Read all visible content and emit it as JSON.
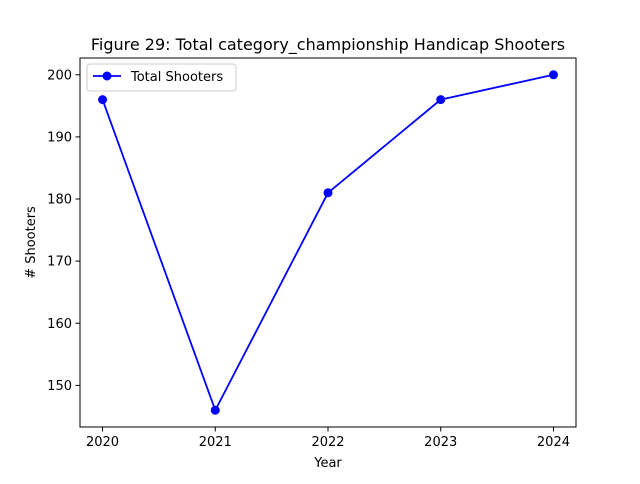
{
  "chart_data": {
    "type": "line",
    "title": "Figure 29: Total category_championship Handicap Shooters",
    "xlabel": "Year",
    "ylabel": "# Shooters",
    "x": [
      2020,
      2021,
      2022,
      2023,
      2024
    ],
    "x_tick_labels": [
      "2020",
      "2021",
      "2022",
      "2023",
      "2024"
    ],
    "xlim": [
      2019.8,
      2024.2
    ],
    "ylim": [
      143.3,
      202.7
    ],
    "y_ticks": [
      150,
      160,
      170,
      180,
      190,
      200
    ],
    "y_tick_labels": [
      "150",
      "160",
      "170",
      "180",
      "190",
      "200"
    ],
    "grid": false,
    "legend_position": "top-left",
    "series": [
      {
        "name": "Total Shooters",
        "values": [
          196,
          146,
          181,
          196,
          200
        ],
        "color": "#0000ff",
        "marker": "circle"
      }
    ]
  }
}
